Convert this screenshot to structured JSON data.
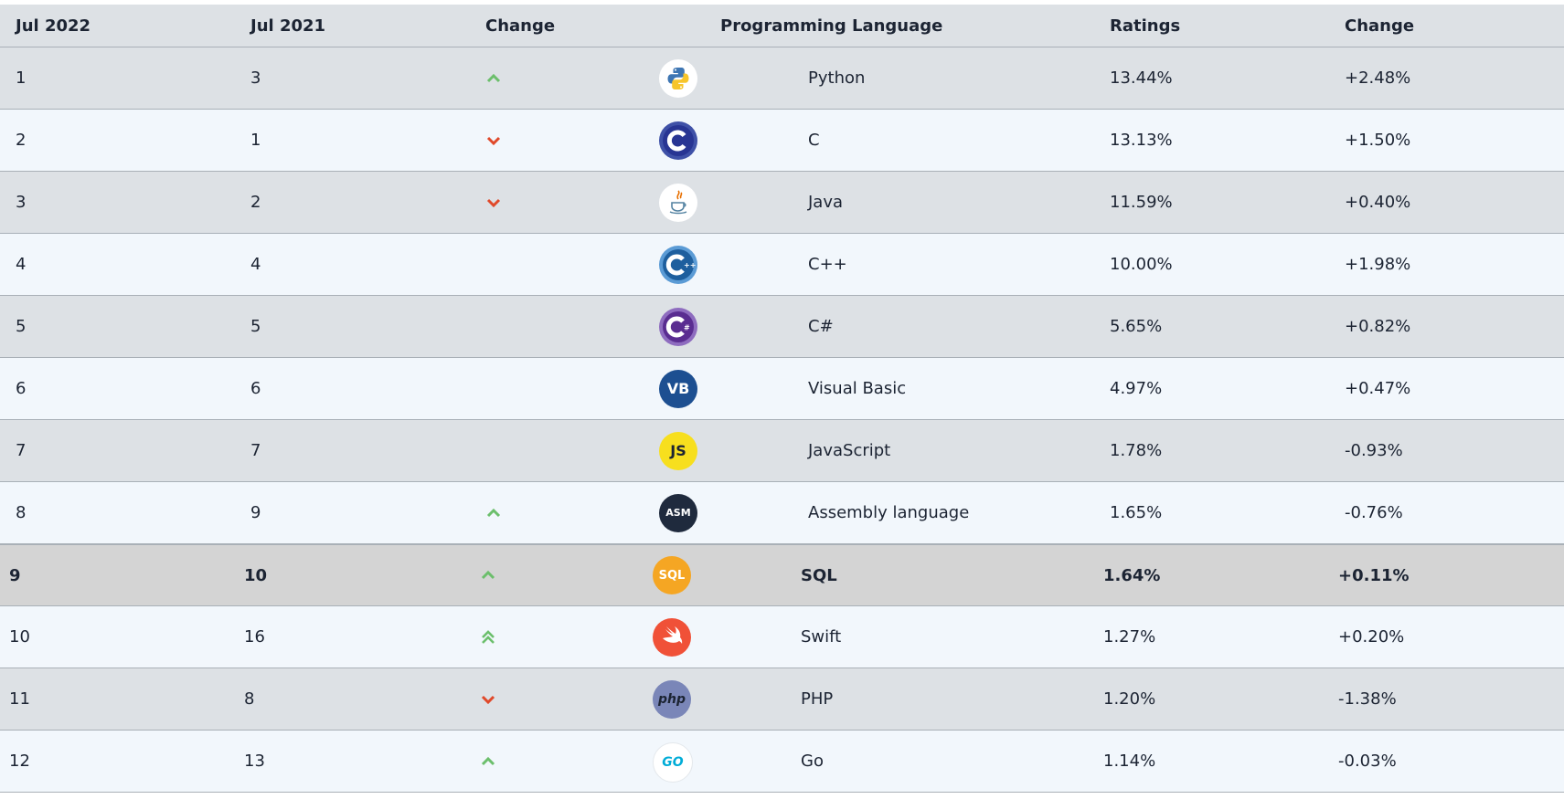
{
  "headers": [
    "Jul 2022",
    "Jul 2021",
    "Change",
    "Programming Language",
    "Ratings",
    "Change"
  ],
  "rows": [
    {
      "jul2022": "1",
      "jul2021": "3",
      "trend": "up",
      "language": "Python",
      "ratings": "13.44%",
      "change": "+2.48%",
      "icon": "python-icon"
    },
    {
      "jul2022": "2",
      "jul2021": "1",
      "trend": "down",
      "language": "C",
      "ratings": "13.13%",
      "change": "+1.50%",
      "icon": "c-icon"
    },
    {
      "jul2022": "3",
      "jul2021": "2",
      "trend": "down",
      "language": "Java",
      "ratings": "11.59%",
      "change": "+0.40%",
      "icon": "java-icon"
    },
    {
      "jul2022": "4",
      "jul2021": "4",
      "trend": "none",
      "language": "C++",
      "ratings": "10.00%",
      "change": "+1.98%",
      "icon": "cpp-icon"
    },
    {
      "jul2022": "5",
      "jul2021": "5",
      "trend": "none",
      "language": "C#",
      "ratings": "5.65%",
      "change": "+0.82%",
      "icon": "csharp-icon"
    },
    {
      "jul2022": "6",
      "jul2021": "6",
      "trend": "none",
      "language": "Visual Basic",
      "ratings": "4.97%",
      "change": "+0.47%",
      "icon": "visual-basic-icon",
      "logo_text": "VB"
    },
    {
      "jul2022": "7",
      "jul2021": "7",
      "trend": "none",
      "language": "JavaScript",
      "ratings": "1.78%",
      "change": "-0.93%",
      "icon": "javascript-icon",
      "logo_text": "JS"
    },
    {
      "jul2022": "8",
      "jul2021": "9",
      "trend": "up",
      "language": "Assembly language",
      "ratings": "1.65%",
      "change": "-0.76%",
      "icon": "assembly-icon",
      "logo_text": "ASM"
    },
    {
      "jul2022": "9",
      "jul2021": "10",
      "trend": "up",
      "language": "SQL",
      "ratings": "1.64%",
      "change": "+0.11%",
      "icon": "sql-icon",
      "logo_text": "SQL",
      "highlight": true
    },
    {
      "jul2022": "10",
      "jul2021": "16",
      "trend": "double-up",
      "language": "Swift",
      "ratings": "1.27%",
      "change": "+0.20%",
      "icon": "swift-icon"
    },
    {
      "jul2022": "11",
      "jul2021": "8",
      "trend": "down",
      "language": "PHP",
      "ratings": "1.20%",
      "change": "-1.38%",
      "icon": "php-icon",
      "logo_text": "php"
    },
    {
      "jul2022": "12",
      "jul2021": "13",
      "trend": "up",
      "language": "Go",
      "ratings": "1.14%",
      "change": "-0.03%",
      "icon": "go-icon",
      "logo_text": "GO"
    }
  ],
  "colors": {
    "up": "#6cbf6c",
    "down": "#e0492a",
    "header_bg": "#dde1e5",
    "row_light": "#f2f7fc",
    "highlight": "#d4d4d4"
  }
}
